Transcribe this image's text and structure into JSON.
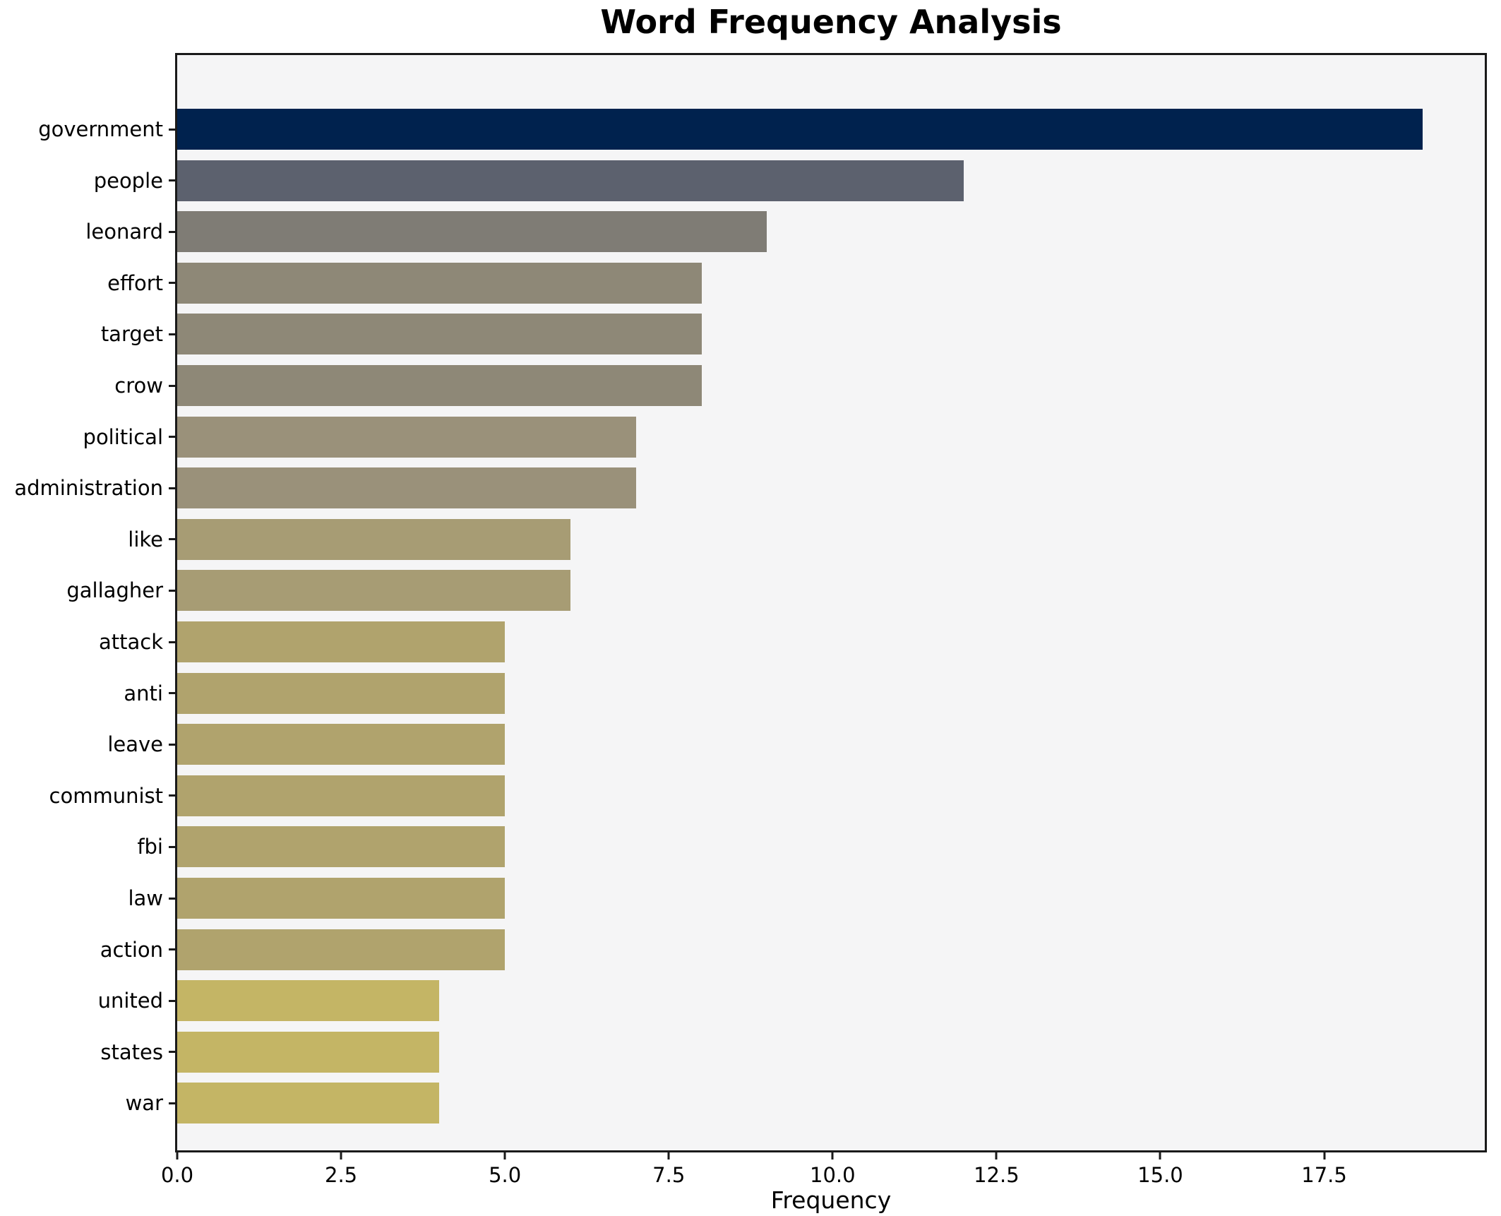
{
  "chart_data": {
    "type": "bar",
    "orientation": "horizontal",
    "title": "Word Frequency Analysis",
    "xlabel": "Frequency",
    "ylabel": "",
    "categories": [
      "government",
      "people",
      "leonard",
      "effort",
      "target",
      "crow",
      "political",
      "administration",
      "like",
      "gallagher",
      "attack",
      "anti",
      "leave",
      "communist",
      "fbi",
      "law",
      "action",
      "united",
      "states",
      "war"
    ],
    "values": [
      19,
      12,
      9,
      8,
      8,
      8,
      7,
      7,
      6,
      6,
      5,
      5,
      5,
      5,
      5,
      5,
      5,
      4,
      4,
      4
    ],
    "bar_colors": [
      "#00224e",
      "#5c616e",
      "#7f7c75",
      "#8e8877",
      "#8e8877",
      "#8e8877",
      "#9a917a",
      "#9a917a",
      "#a79c74",
      "#a79c74",
      "#b0a36d",
      "#b0a36d",
      "#b0a36d",
      "#b0a36d",
      "#b0a36d",
      "#b0a36d",
      "#b0a36d",
      "#c4b565",
      "#c4b565",
      "#c4b565"
    ],
    "xlim": [
      0,
      19.95
    ],
    "xticks": [
      0,
      2.5,
      5,
      7.5,
      10,
      12.5,
      15,
      17.5
    ],
    "xtick_labels": [
      "0.0",
      "2.5",
      "5.0",
      "7.5",
      "10.0",
      "12.5",
      "15.0",
      "17.5"
    ],
    "grid": false,
    "legend_position": "none",
    "plot_bg": "#f5f5f6",
    "figure_bg": "#ffffff",
    "spine_color": "#1a1a1a"
  }
}
